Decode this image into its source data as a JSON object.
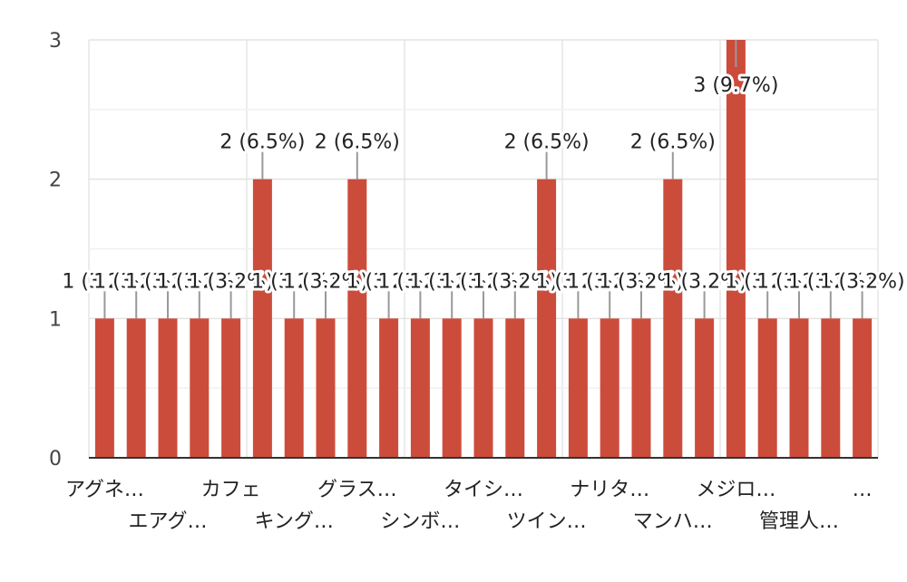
{
  "chart_data": {
    "type": "bar",
    "categories": [
      "アグネ…",
      "",
      "エアグ…",
      "",
      "カフェ",
      "",
      "キング…",
      "",
      "グラス…",
      "",
      "シンボ…",
      "",
      "タイシ…",
      "",
      "ツイン…",
      "",
      "ナリタ…",
      "",
      "マンハ…",
      "",
      "メジロ…",
      "",
      "管理人…",
      "",
      "…"
    ],
    "values": [
      1,
      1,
      1,
      1,
      1,
      2,
      1,
      1,
      2,
      1,
      1,
      1,
      1,
      1,
      2,
      1,
      1,
      1,
      2,
      1,
      3,
      1,
      1,
      1,
      1
    ],
    "data_labels": [
      "1 (3.2%)",
      "1 (3.2%)",
      "1 (3.2%)",
      "1 (3.2%)",
      "1 (3.2%)",
      "2 (6.5%)",
      "1 (3.2%)",
      "1 (3.2%)",
      "2 (6.5%)",
      "1 (3.2%)",
      "1 (3.2%)",
      "1 (3.2%)",
      "1 (3.2%)",
      "1 (3.2%)",
      "2 (6.5%)",
      "1 (3.2%)",
      "1 (3.2%)",
      "1 (3.2%)",
      "2 (6.5%)",
      "1 (3.2%)",
      "3 (9.7%)",
      "1 (3.2%)",
      "1 (3.2%)",
      "1 (3.2%)",
      "1 (3.2%)"
    ],
    "ylim": [
      0,
      3
    ],
    "yticks": [
      "0",
      "1",
      "2",
      "3"
    ],
    "grid": true,
    "bar_color": "#cc4c3b"
  }
}
